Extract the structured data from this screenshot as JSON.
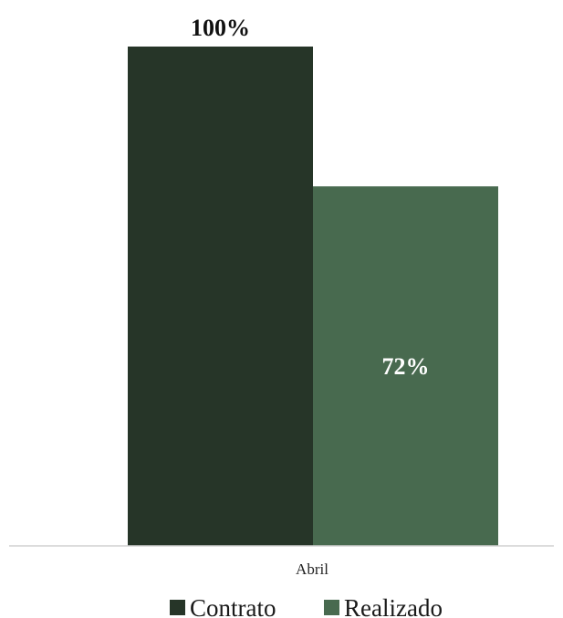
{
  "chart_data": {
    "type": "bar",
    "title": "",
    "xlabel": "",
    "ylabel": "",
    "categories": [
      "Abril"
    ],
    "ylim": [
      0,
      1
    ],
    "grid": false,
    "legend_position": "bottom",
    "series": [
      {
        "name": "Contrato",
        "values": [
          1.0
        ],
        "labels": [
          "100%"
        ],
        "color": "#263528",
        "label_position": "outside-end",
        "label_color": "#111111"
      },
      {
        "name": "Realizado",
        "values": [
          0.72
        ],
        "labels": [
          "72%"
        ],
        "color": "#486a4f",
        "label_position": "center",
        "label_color": "#ffffff"
      }
    ]
  }
}
